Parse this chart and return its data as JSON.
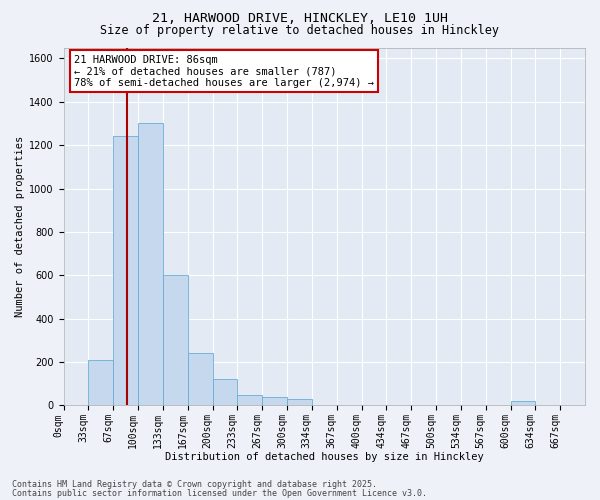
{
  "title1": "21, HARWOOD DRIVE, HINCKLEY, LE10 1UH",
  "title2": "Size of property relative to detached houses in Hinckley",
  "xlabel": "Distribution of detached houses by size in Hinckley",
  "ylabel": "Number of detached properties",
  "bin_labels": [
    "0sqm",
    "33sqm",
    "67sqm",
    "100sqm",
    "133sqm",
    "167sqm",
    "200sqm",
    "233sqm",
    "267sqm",
    "300sqm",
    "334sqm",
    "367sqm",
    "400sqm",
    "434sqm",
    "467sqm",
    "500sqm",
    "534sqm",
    "567sqm",
    "600sqm",
    "634sqm",
    "667sqm"
  ],
  "bar_heights": [
    0,
    210,
    1240,
    1300,
    600,
    240,
    120,
    50,
    40,
    30,
    0,
    0,
    0,
    0,
    0,
    0,
    0,
    0,
    20,
    0,
    0
  ],
  "bar_color": "#c5d8ee",
  "bar_edge_color": "#6aadd5",
  "vline_color": "#aa0000",
  "annotation_text": "21 HARWOOD DRIVE: 86sqm\n← 21% of detached houses are smaller (787)\n78% of semi-detached houses are larger (2,974) →",
  "annotation_box_color": "#ffffff",
  "annotation_box_edge": "#cc0000",
  "ylim": [
    0,
    1650
  ],
  "yticks": [
    0,
    200,
    400,
    600,
    800,
    1000,
    1200,
    1400,
    1600
  ],
  "footer1": "Contains HM Land Registry data © Crown copyright and database right 2025.",
  "footer2": "Contains public sector information licensed under the Open Government Licence v3.0.",
  "bg_color": "#eef2f8",
  "plot_bg_color": "#e4eaf4",
  "grid_color": "#ffffff",
  "title_fontsize": 9.5,
  "subtitle_fontsize": 8.5,
  "axis_label_fontsize": 7.5,
  "tick_fontsize": 7,
  "annotation_fontsize": 7.5,
  "footer_fontsize": 6
}
